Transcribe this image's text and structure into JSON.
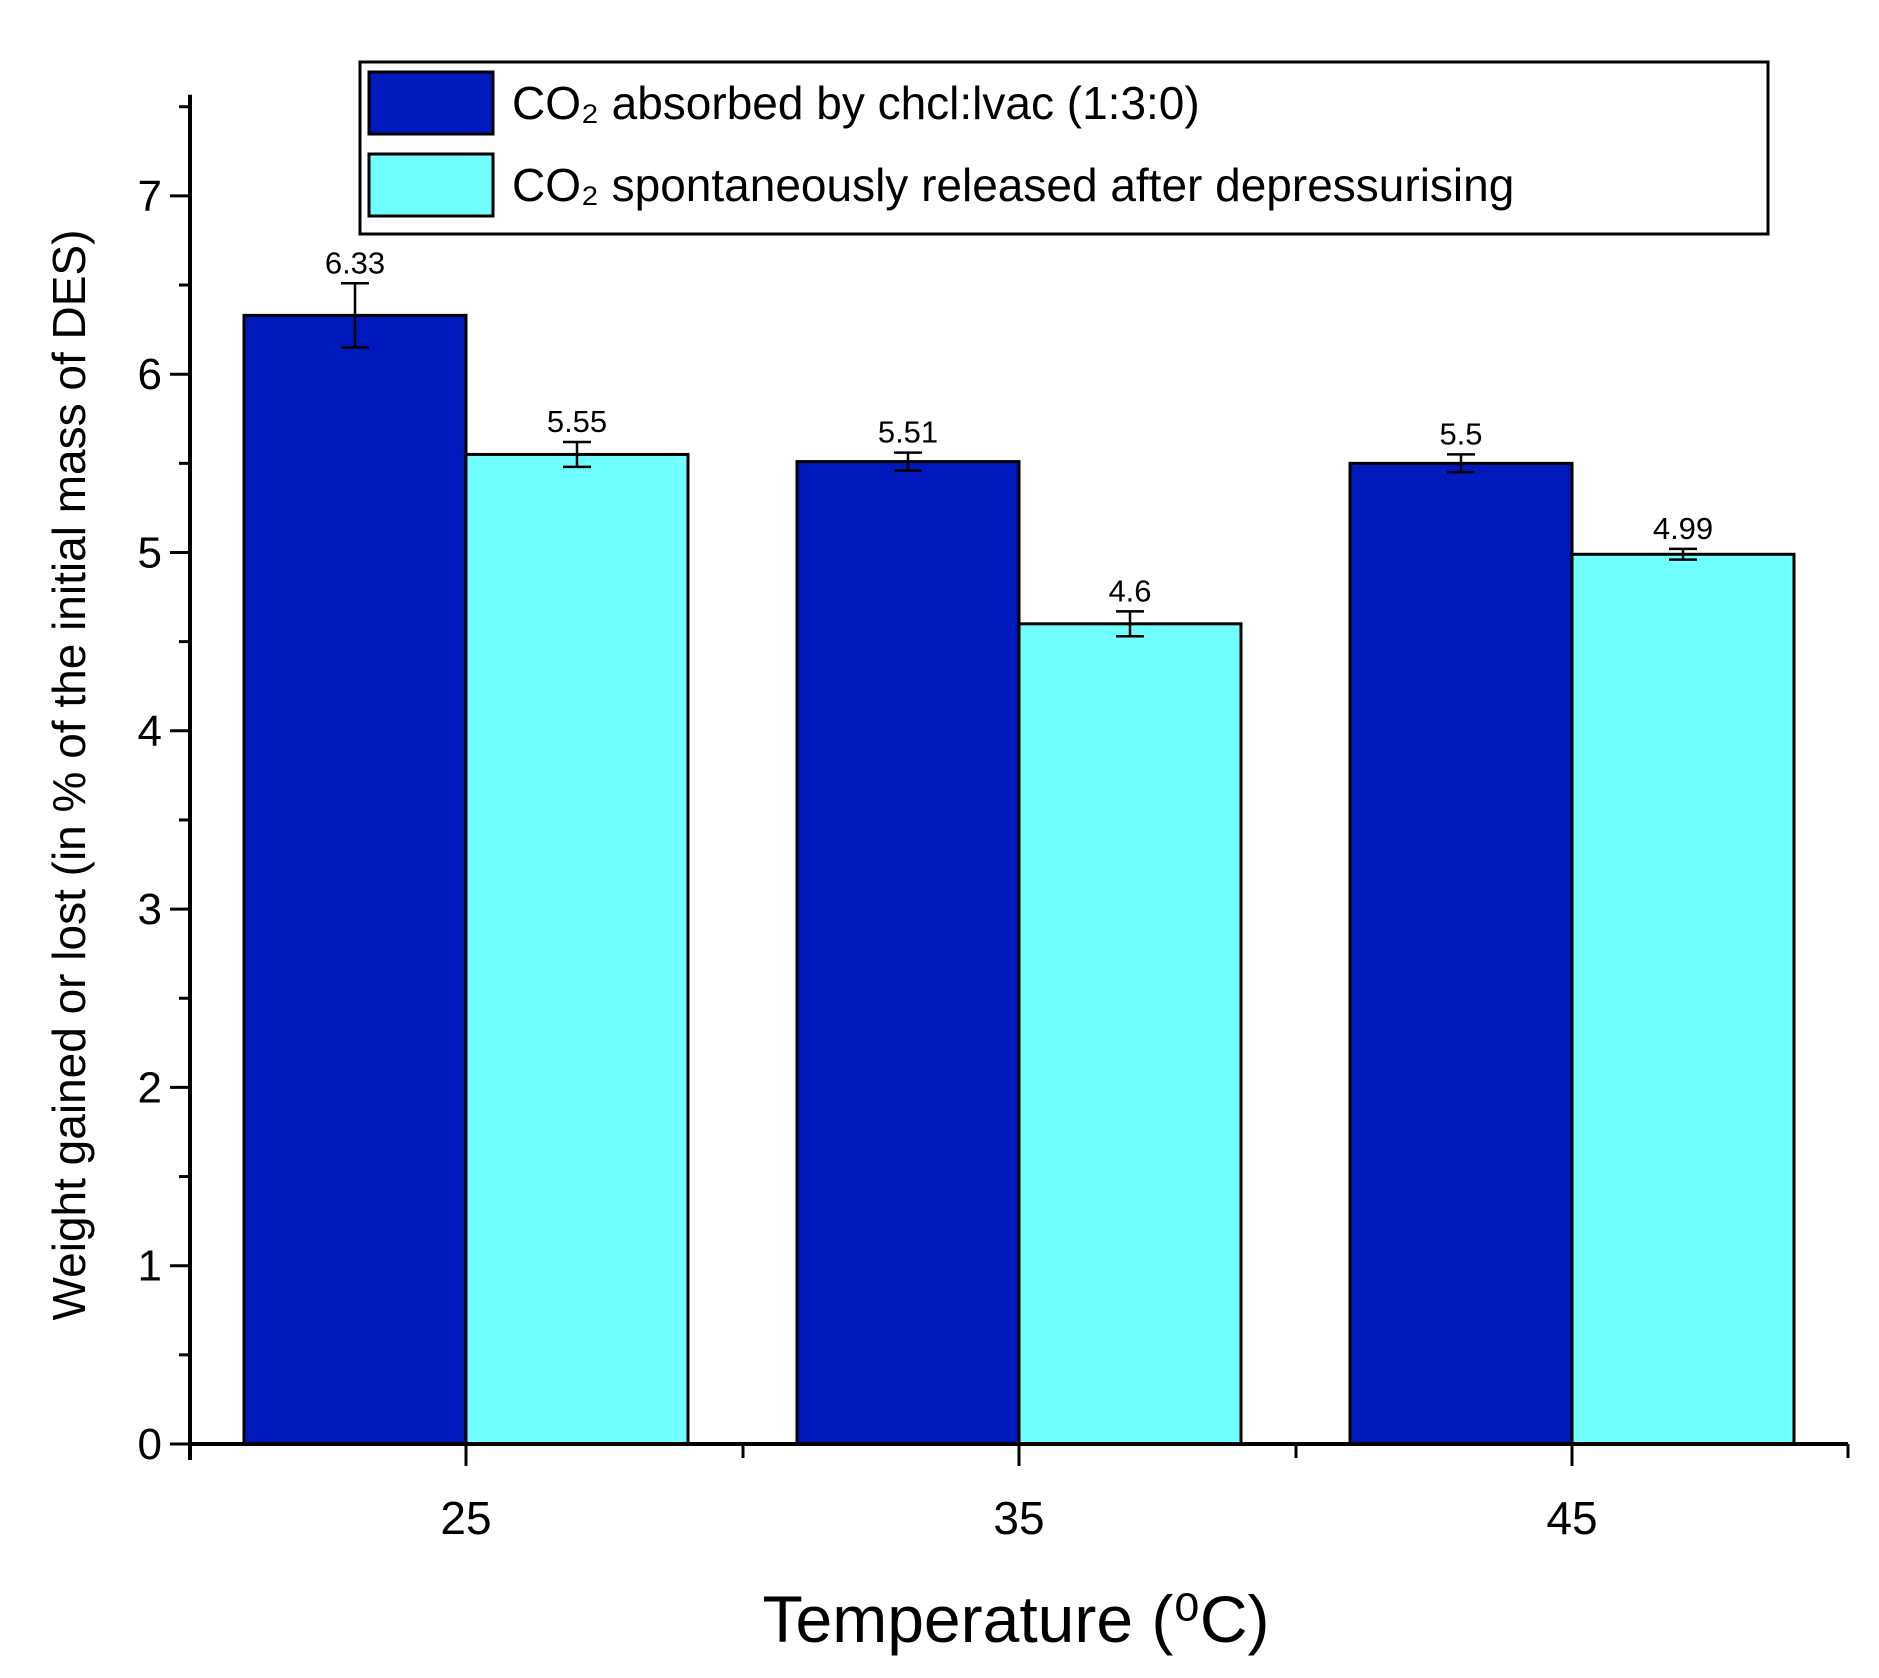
{
  "chart_data": {
    "type": "bar",
    "title": "",
    "xlabel": "Temperature (⁰C)",
    "ylabel": "Weight gained or lost (in % of the initial mass of DES)",
    "categories": [
      "25",
      "35",
      "45"
    ],
    "ylim": [
      0,
      7.5
    ],
    "yticks": [
      0,
      1,
      2,
      3,
      4,
      5,
      6,
      7
    ],
    "grid": false,
    "legend_position": "top-right",
    "series": [
      {
        "name": "CO₂ absorbed by chcl:lvac (1:3:0)",
        "color": "#0019BC",
        "values": [
          6.33,
          5.51,
          5.5
        ],
        "errors": [
          0.18,
          0.05,
          0.05
        ],
        "labels": [
          "6.33",
          "5.51",
          "5.5"
        ]
      },
      {
        "name": "CO₂ spontaneously released after depressurising",
        "color": "#70FEFE",
        "values": [
          5.55,
          4.6,
          4.99
        ],
        "errors": [
          0.07,
          0.07,
          0.03
        ],
        "labels": [
          "5.55",
          "4.6",
          "4.99"
        ]
      }
    ]
  }
}
